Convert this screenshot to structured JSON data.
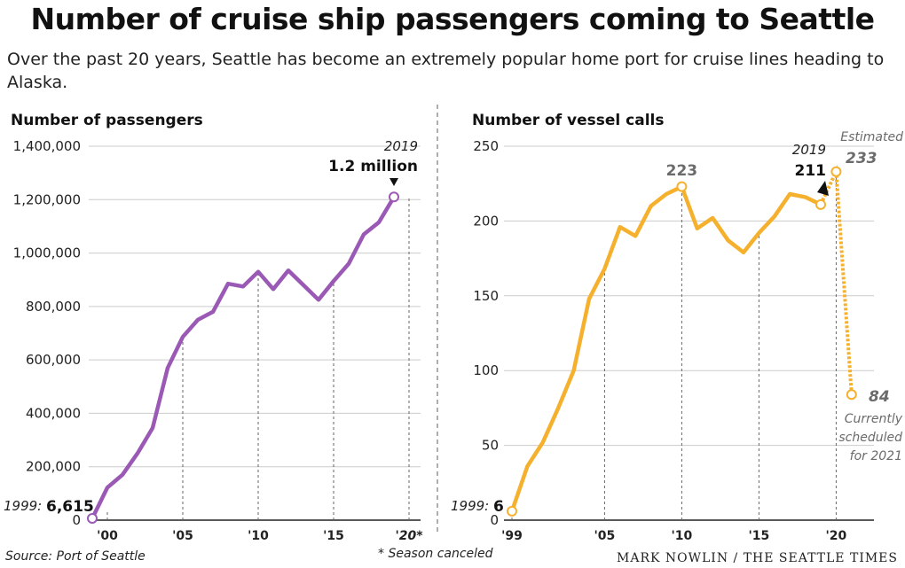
{
  "header": {
    "title": "Number of cruise ship passengers coming to Seattle",
    "subtitle": "Over the past 20 years, Seattle has become an extremely popular home port for cruise lines heading to Alaska."
  },
  "footer": {
    "source": "Source: Port of Seattle",
    "footnote": "* Season canceled",
    "credit": "MARK NOWLIN / THE SEATTLE TIMES"
  },
  "colors": {
    "passengers": "#9b59b6",
    "vessels": "#f5b12e",
    "grid": "#cccccc",
    "axis": "#222222"
  },
  "chart_data": [
    {
      "type": "line",
      "title": "Number of passengers",
      "x": [
        1999,
        2000,
        2001,
        2002,
        2003,
        2004,
        2005,
        2006,
        2007,
        2008,
        2009,
        2010,
        2011,
        2012,
        2013,
        2014,
        2015,
        2016,
        2017,
        2018,
        2019
      ],
      "values": [
        6615,
        122000,
        170000,
        250000,
        345000,
        570000,
        686000,
        750000,
        780000,
        885000,
        875000,
        930000,
        865000,
        935000,
        880000,
        825000,
        895000,
        960000,
        1070000,
        1115000,
        1210000
      ],
      "ylim": [
        0,
        1400000
      ],
      "yticks": [
        0,
        200000,
        400000,
        600000,
        800000,
        1000000,
        1200000,
        1400000
      ],
      "ytick_labels": [
        "0",
        "200,000",
        "400,000",
        "600,000",
        "800,000",
        "1,000,000",
        "1,200,000",
        "1,400,000"
      ],
      "xticks": [
        2000,
        2005,
        2010,
        2015,
        2020
      ],
      "xtick_labels": [
        "'00",
        "'05",
        "'10",
        "'15",
        "'20*"
      ],
      "annotations": {
        "start_year": "1999:",
        "start_value": "6,615",
        "end_year": "2019",
        "end_value": "1.2 million"
      }
    },
    {
      "type": "line",
      "title": "Number of vessel calls",
      "x": [
        1999,
        2000,
        2001,
        2002,
        2003,
        2004,
        2005,
        2006,
        2007,
        2008,
        2009,
        2010,
        2011,
        2012,
        2013,
        2014,
        2015,
        2016,
        2017,
        2018,
        2019
      ],
      "values": [
        6,
        36,
        52,
        75,
        100,
        148,
        168,
        196,
        190,
        210,
        218,
        223,
        195,
        202,
        187,
        179,
        192,
        203,
        218,
        216,
        211
      ],
      "projection": {
        "x": [
          2019,
          2020,
          2021
        ],
        "values": [
          211,
          233,
          84
        ]
      },
      "ylim": [
        0,
        250
      ],
      "yticks": [
        0,
        50,
        100,
        150,
        200,
        250
      ],
      "ytick_labels": [
        "0",
        "50",
        "100",
        "150",
        "200",
        "250"
      ],
      "xticks": [
        1999,
        2005,
        2010,
        2015,
        2020
      ],
      "xtick_labels": [
        "'99",
        "'05",
        "'10",
        "'15",
        "'20"
      ],
      "annotations": {
        "start_year": "1999:",
        "start_value": "6",
        "peak_value": "223",
        "end_year": "2019",
        "end_value": "211",
        "estimated_label": "Estimated",
        "estimated_value": "233",
        "scheduled_value": "84",
        "scheduled_note": [
          "Currently",
          "scheduled",
          "for 2021"
        ]
      }
    }
  ]
}
